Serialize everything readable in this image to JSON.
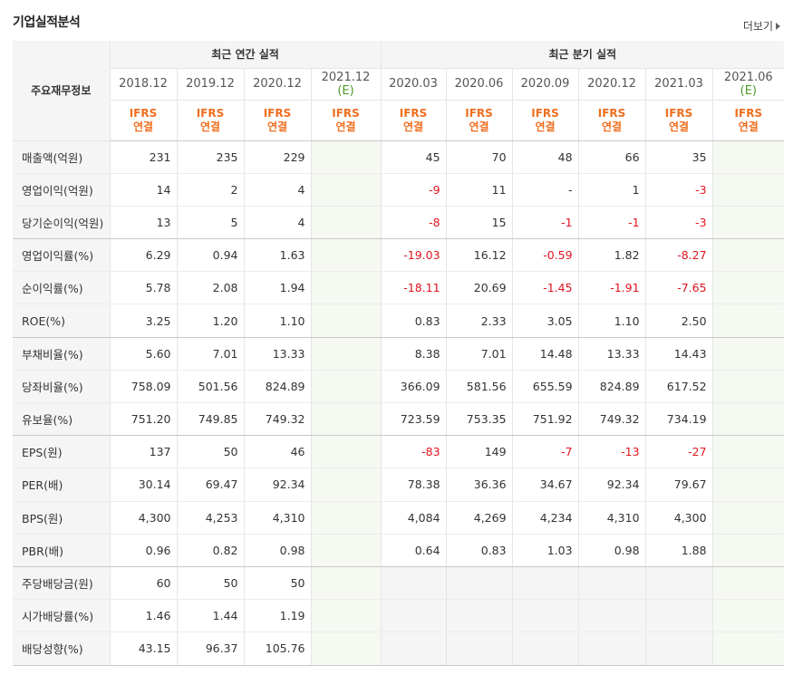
{
  "header": {
    "title": "기업실적분석",
    "more_label": "더보기"
  },
  "table": {
    "label_header": "주요재무정보",
    "annual_header": "최근 연간 실적",
    "quarter_header": "최근 분기 실적",
    "columns": [
      {
        "period": "2018.12",
        "est": "",
        "acct1": "IFRS",
        "acct2": "연결"
      },
      {
        "period": "2019.12",
        "est": "",
        "acct1": "IFRS",
        "acct2": "연결"
      },
      {
        "period": "2020.12",
        "est": "",
        "acct1": "IFRS",
        "acct2": "연결"
      },
      {
        "period": "2021.12",
        "est": "(E)",
        "acct1": "IFRS",
        "acct2": "연결"
      },
      {
        "period": "2020.03",
        "est": "",
        "acct1": "IFRS",
        "acct2": "연결"
      },
      {
        "period": "2020.06",
        "est": "",
        "acct1": "IFRS",
        "acct2": "연결"
      },
      {
        "period": "2020.09",
        "est": "",
        "acct1": "IFRS",
        "acct2": "연결"
      },
      {
        "period": "2020.12",
        "est": "",
        "acct1": "IFRS",
        "acct2": "연결"
      },
      {
        "period": "2021.03",
        "est": "",
        "acct1": "IFRS",
        "acct2": "연결"
      },
      {
        "period": "2021.06",
        "est": "(E)",
        "acct1": "IFRS",
        "acct2": "연결"
      }
    ],
    "rows": [
      {
        "label": "매출액(억원)",
        "values": [
          "231",
          "235",
          "229",
          "",
          "45",
          "70",
          "48",
          "66",
          "35",
          ""
        ]
      },
      {
        "label": "영업이익(억원)",
        "values": [
          "14",
          "2",
          "4",
          "",
          "-9",
          "11",
          "-",
          "1",
          "-3",
          ""
        ]
      },
      {
        "label": "당기순이익(억원)",
        "values": [
          "13",
          "5",
          "4",
          "",
          "-8",
          "15",
          "-1",
          "-1",
          "-3",
          ""
        ]
      },
      {
        "label": "영업이익률(%)",
        "values": [
          "6.29",
          "0.94",
          "1.63",
          "",
          "-19.03",
          "16.12",
          "-0.59",
          "1.82",
          "-8.27",
          ""
        ]
      },
      {
        "label": "순이익률(%)",
        "values": [
          "5.78",
          "2.08",
          "1.94",
          "",
          "-18.11",
          "20.69",
          "-1.45",
          "-1.91",
          "-7.65",
          ""
        ]
      },
      {
        "label": "ROE(%)",
        "values": [
          "3.25",
          "1.20",
          "1.10",
          "",
          "0.83",
          "2.33",
          "3.05",
          "1.10",
          "2.50",
          ""
        ]
      },
      {
        "label": "부채비율(%)",
        "values": [
          "5.60",
          "7.01",
          "13.33",
          "",
          "8.38",
          "7.01",
          "14.48",
          "13.33",
          "14.43",
          ""
        ]
      },
      {
        "label": "당좌비율(%)",
        "values": [
          "758.09",
          "501.56",
          "824.89",
          "",
          "366.09",
          "581.56",
          "655.59",
          "824.89",
          "617.52",
          ""
        ]
      },
      {
        "label": "유보율(%)",
        "values": [
          "751.20",
          "749.85",
          "749.32",
          "",
          "723.59",
          "753.35",
          "751.92",
          "749.32",
          "734.19",
          ""
        ]
      },
      {
        "label": "EPS(원)",
        "values": [
          "137",
          "50",
          "46",
          "",
          "-83",
          "149",
          "-7",
          "-13",
          "-27",
          ""
        ]
      },
      {
        "label": "PER(배)",
        "values": [
          "30.14",
          "69.47",
          "92.34",
          "",
          "78.38",
          "36.36",
          "34.67",
          "92.34",
          "79.67",
          ""
        ]
      },
      {
        "label": "BPS(원)",
        "values": [
          "4,300",
          "4,253",
          "4,310",
          "",
          "4,084",
          "4,269",
          "4,234",
          "4,310",
          "4,300",
          ""
        ]
      },
      {
        "label": "PBR(배)",
        "values": [
          "0.96",
          "0.82",
          "0.98",
          "",
          "0.64",
          "0.83",
          "1.03",
          "0.98",
          "1.88",
          ""
        ]
      },
      {
        "label": "주당배당금(원)",
        "values": [
          "60",
          "50",
          "50",
          "",
          "",
          "",
          "",
          "",
          "",
          ""
        ]
      },
      {
        "label": "시가배당률(%)",
        "values": [
          "1.46",
          "1.44",
          "1.19",
          "",
          "",
          "",
          "",
          "",
          "",
          ""
        ]
      },
      {
        "label": "배당성향(%)",
        "values": [
          "43.15",
          "96.37",
          "105.76",
          "",
          "",
          "",
          "",
          "",
          "",
          ""
        ]
      }
    ]
  },
  "colors": {
    "accent_orange": "#f06e1e",
    "negative_red": "#e0141e",
    "estimate_green": "#4e9a2a",
    "estimate_bg": "#f5f9f2",
    "label_bg": "#f5f5f5"
  }
}
